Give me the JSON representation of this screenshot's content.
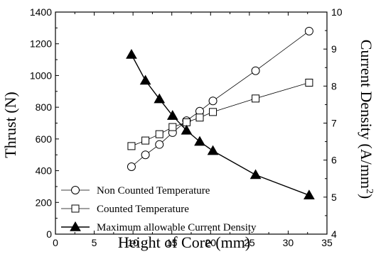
{
  "chart_data": {
    "type": "line",
    "xlabel": "Height of Core (mm)",
    "ylabel_left": "Thrust (N)",
    "ylabel_right": "Current Density (A/mm",
    "ylabel_right_sup": "2",
    "ylabel_right_end": ")",
    "xlim": [
      0,
      35
    ],
    "ylim_left": [
      0,
      1400
    ],
    "ylim_right": [
      4,
      10
    ],
    "xticks": [
      "0",
      "5",
      "10",
      "15",
      "20",
      "25",
      "30",
      "35"
    ],
    "yticks_left": [
      "0",
      "200",
      "400",
      "600",
      "800",
      "1000",
      "1200",
      "1400"
    ],
    "yticks_right": [
      "4",
      "5",
      "6",
      "7",
      "8",
      "9",
      "10"
    ],
    "grid": false,
    "legend_position": "bottom-left",
    "series": [
      {
        "name": "Non Counted Temperature",
        "axis": "left",
        "marker": "circle-open",
        "x": [
          9.8,
          11.6,
          13.4,
          15.1,
          16.9,
          18.6,
          20.3,
          25.8,
          32.7
        ],
        "y": [
          425,
          500,
          565,
          640,
          715,
          775,
          840,
          1030,
          1280
        ]
      },
      {
        "name": "Counted Temperature",
        "axis": "left",
        "marker": "square-open",
        "x": [
          9.8,
          11.6,
          13.4,
          15.1,
          16.9,
          18.6,
          20.3,
          25.8,
          32.7
        ],
        "y": [
          555,
          590,
          630,
          675,
          705,
          735,
          770,
          855,
          955
        ]
      },
      {
        "name": "Maximum allowable Current Density",
        "axis": "right",
        "marker": "triangle-filled",
        "x": [
          9.8,
          11.6,
          13.4,
          15.1,
          16.9,
          18.6,
          20.3,
          25.8,
          32.7
        ],
        "y": [
          8.85,
          8.15,
          7.65,
          7.2,
          6.8,
          6.5,
          6.25,
          5.6,
          5.05
        ]
      }
    ]
  }
}
